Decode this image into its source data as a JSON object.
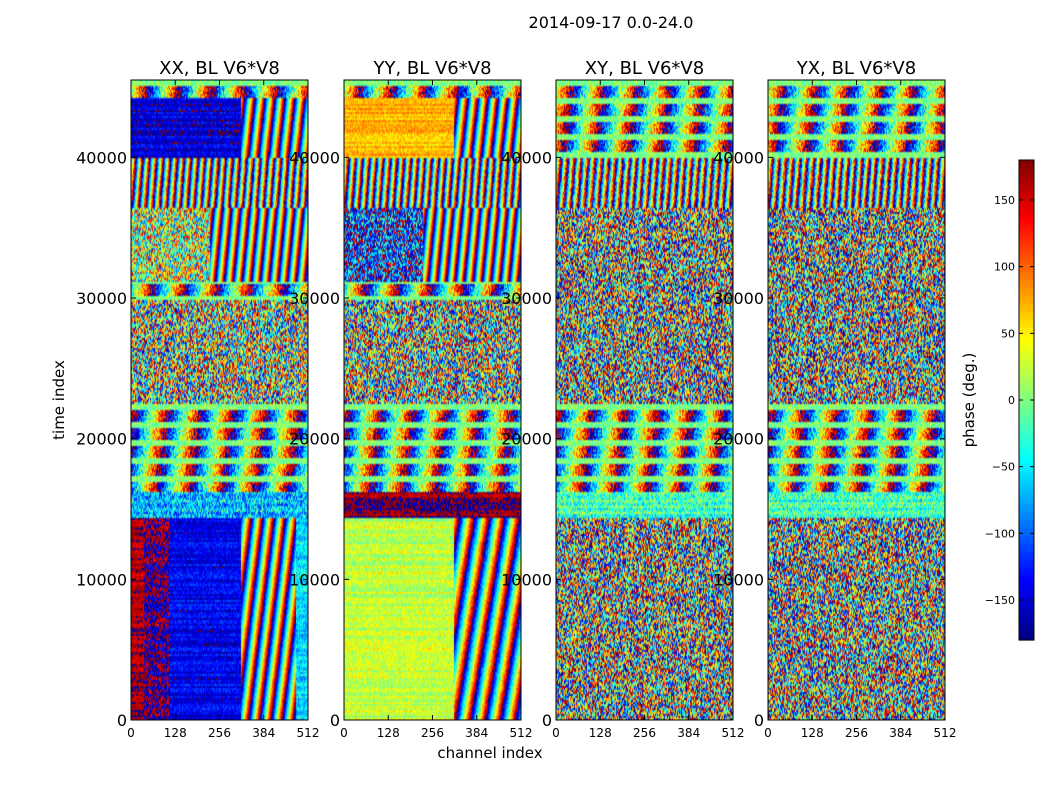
{
  "figure": {
    "title": "2014-09-17 0.0-24.0"
  },
  "chart_data": {
    "type": "heatmap",
    "shared": {
      "xlabel": "channel index",
      "ylabel": "time index",
      "x_ticks": [
        0,
        128,
        256,
        384,
        512
      ],
      "y_ticks": [
        0,
        10000,
        20000,
        30000,
        40000
      ],
      "xlim": [
        0,
        512
      ],
      "ylim": [
        0,
        45500
      ],
      "colormap": "jet",
      "grid": false
    },
    "colorbar": {
      "label": "phase (deg.)",
      "range": [
        -180,
        180
      ],
      "ticks": [
        150,
        100,
        50,
        0,
        -50,
        -100,
        -150
      ],
      "tick_labels": [
        "150",
        "100",
        "50",
        "0",
        "−50",
        "−100",
        "−150"
      ],
      "position": "right"
    },
    "panels": [
      {
        "title": "XX, BL V6*V8",
        "ylabel": "time index",
        "seed": 11,
        "regions": [
          {
            "t0": 0,
            "t1": 14500,
            "c0": 0,
            "c1": 40,
            "phase": 165,
            "noise": 20
          },
          {
            "t0": 0,
            "t1": 14500,
            "c0": 40,
            "c1": 110,
            "phase": -175,
            "noise": 45
          },
          {
            "t0": 0,
            "t1": 14500,
            "c0": 110,
            "c1": 320,
            "phase": -140,
            "noise": 25
          },
          {
            "t0": 0,
            "t1": 14500,
            "c0": 320,
            "c1": 480,
            "stripes": 0.8,
            "noise": 30
          },
          {
            "t0": 0,
            "t1": 14500,
            "c0": 480,
            "c1": 512,
            "phase": -60,
            "noise": 30
          },
          {
            "t0": 14500,
            "t1": 16300,
            "c0": 0,
            "c1": 512,
            "phase": -70,
            "noise": 60
          },
          {
            "t0": 16300,
            "t1": 22500,
            "c0": 0,
            "c1": 512,
            "hbands": true
          },
          {
            "t0": 22500,
            "t1": 30000,
            "c0": 0,
            "c1": 512,
            "phase": 10,
            "noise": 160
          },
          {
            "t0": 30000,
            "t1": 31200,
            "c0": 0,
            "c1": 512,
            "hbands": true
          },
          {
            "t0": 31200,
            "t1": 36500,
            "c0": 0,
            "c1": 230,
            "phase": 20,
            "noise": 130
          },
          {
            "t0": 31200,
            "t1": 36500,
            "c0": 230,
            "c1": 512,
            "stripes": 1.0,
            "noise": 20
          },
          {
            "t0": 36500,
            "t1": 40000,
            "c0": 0,
            "c1": 512,
            "stripes": 1.3,
            "noise": 60
          },
          {
            "t0": 40000,
            "t1": 44300,
            "c0": 0,
            "c1": 320,
            "phase": -150,
            "noise": 25
          },
          {
            "t0": 40000,
            "t1": 44300,
            "c0": 320,
            "c1": 512,
            "stripes": 0.9,
            "noise": 30
          },
          {
            "t0": 44300,
            "t1": 45500,
            "c0": 0,
            "c1": 512,
            "hbands": true
          }
        ]
      },
      {
        "title": "YY, BL V6*V8",
        "ylabel": "",
        "seed": 23,
        "regions": [
          {
            "t0": 0,
            "t1": 14500,
            "c0": 0,
            "c1": 320,
            "phase": 25,
            "noise": 25
          },
          {
            "t0": 0,
            "t1": 14500,
            "c0": 320,
            "c1": 512,
            "stripes": 0.6,
            "noise": 40
          },
          {
            "t0": 14500,
            "t1": 16300,
            "c0": 0,
            "c1": 512,
            "phase": 175,
            "noise": 25
          },
          {
            "t0": 16300,
            "t1": 22500,
            "c0": 0,
            "c1": 512,
            "hbands": true
          },
          {
            "t0": 22500,
            "t1": 30000,
            "c0": 0,
            "c1": 512,
            "phase": 0,
            "noise": 170
          },
          {
            "t0": 30000,
            "t1": 31200,
            "c0": 0,
            "c1": 512,
            "hbands": true
          },
          {
            "t0": 31200,
            "t1": 36500,
            "c0": 0,
            "c1": 230,
            "phase": -120,
            "noise": 110
          },
          {
            "t0": 31200,
            "t1": 36500,
            "c0": 230,
            "c1": 512,
            "stripes": 1.0,
            "noise": 20
          },
          {
            "t0": 36500,
            "t1": 40000,
            "c0": 0,
            "c1": 512,
            "stripes": 1.3,
            "noise": 60
          },
          {
            "t0": 40000,
            "t1": 44300,
            "c0": 0,
            "c1": 320,
            "phase": 70,
            "noise": 20
          },
          {
            "t0": 40000,
            "t1": 44300,
            "c0": 320,
            "c1": 512,
            "stripes": 0.9,
            "noise": 30
          },
          {
            "t0": 44300,
            "t1": 45500,
            "c0": 0,
            "c1": 512,
            "hbands": true
          }
        ]
      },
      {
        "title": "XY, BL V6*V8",
        "ylabel": "",
        "seed": 37,
        "regions": [
          {
            "t0": 0,
            "t1": 14500,
            "c0": 0,
            "c1": 512,
            "phase": 0,
            "noise": 180
          },
          {
            "t0": 14500,
            "t1": 16300,
            "c0": 0,
            "c1": 512,
            "phase": -20,
            "noise": 50
          },
          {
            "t0": 16300,
            "t1": 22500,
            "c0": 0,
            "c1": 512,
            "hbands": true
          },
          {
            "t0": 22500,
            "t1": 36500,
            "c0": 0,
            "c1": 512,
            "phase": 0,
            "noise": 180
          },
          {
            "t0": 36500,
            "t1": 40000,
            "c0": 0,
            "c1": 512,
            "stripes": 1.3,
            "noise": 90
          },
          {
            "t0": 40000,
            "t1": 45500,
            "c0": 0,
            "c1": 512,
            "hbands": true
          }
        ]
      },
      {
        "title": "YX, BL V6*V8",
        "ylabel": "",
        "seed": 53,
        "regions": [
          {
            "t0": 0,
            "t1": 14500,
            "c0": 0,
            "c1": 512,
            "phase": 0,
            "noise": 180
          },
          {
            "t0": 14500,
            "t1": 16300,
            "c0": 0,
            "c1": 512,
            "phase": -20,
            "noise": 50
          },
          {
            "t0": 16300,
            "t1": 22500,
            "c0": 0,
            "c1": 512,
            "hbands": true
          },
          {
            "t0": 22500,
            "t1": 36500,
            "c0": 0,
            "c1": 512,
            "phase": 0,
            "noise": 180
          },
          {
            "t0": 36500,
            "t1": 40000,
            "c0": 0,
            "c1": 512,
            "stripes": 1.3,
            "noise": 90
          },
          {
            "t0": 40000,
            "t1": 45500,
            "c0": 0,
            "c1": 512,
            "hbands": true
          }
        ]
      }
    ]
  }
}
